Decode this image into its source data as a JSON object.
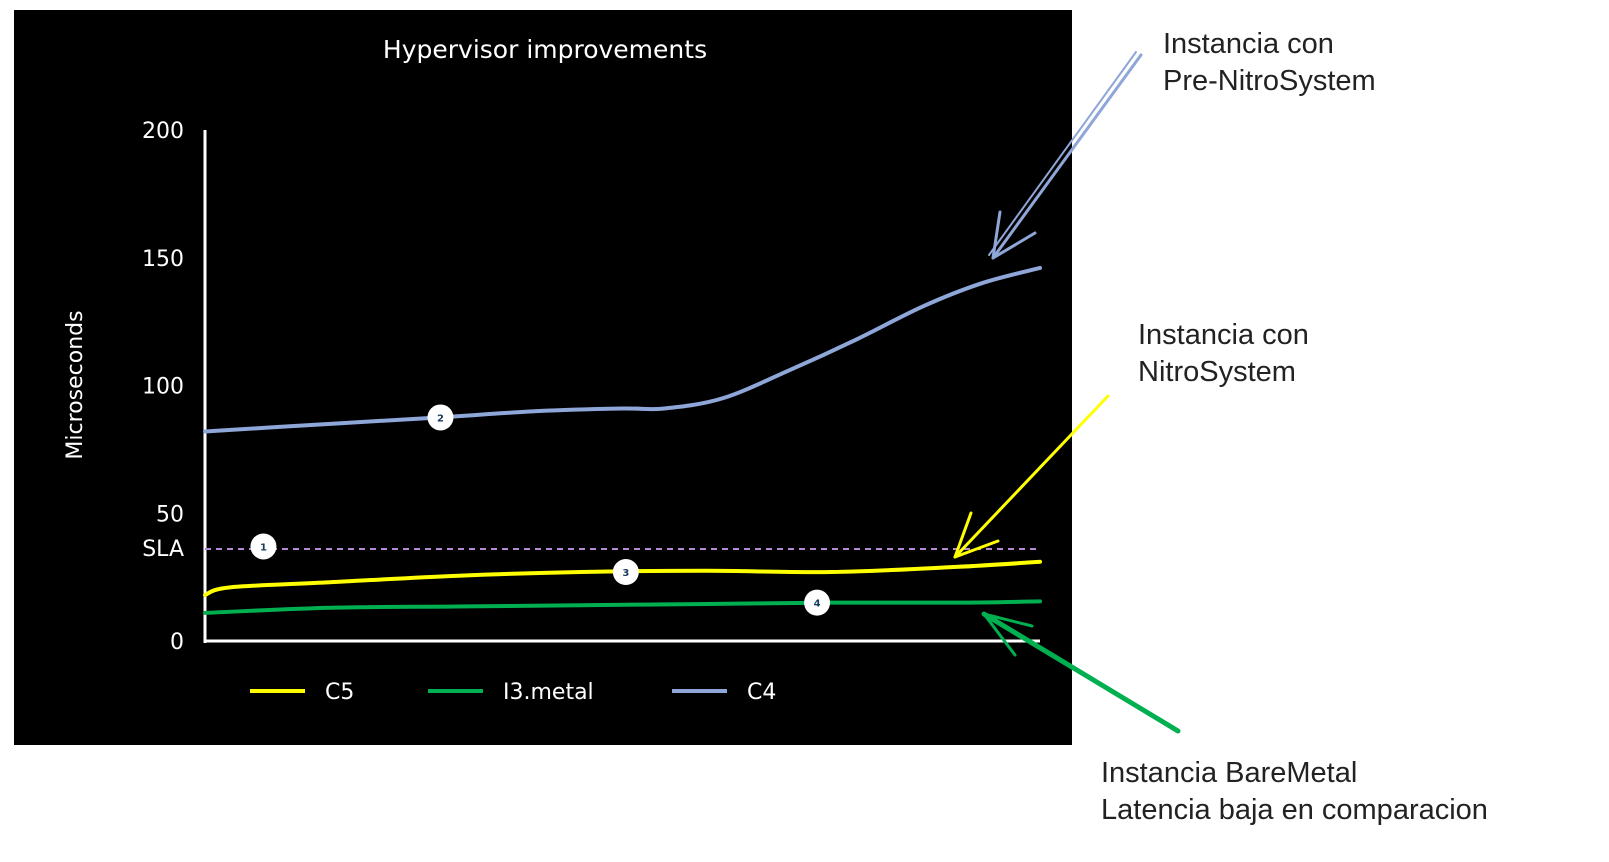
{
  "chart_data": {
    "type": "line",
    "title": "Hypervisor improvements",
    "xlabel": "",
    "ylabel": "Microseconds",
    "ylim": [
      0,
      200
    ],
    "yticks": [
      0,
      50,
      100,
      150,
      200
    ],
    "reference_line": {
      "label": "SLA",
      "value": 36,
      "style": "dashed",
      "color": "#b48ad6"
    },
    "legend_position": "bottom",
    "series": [
      {
        "name": "C5",
        "color": "#ffff00",
        "x": [
          0,
          0.03,
          0.15,
          0.3,
          0.45,
          0.6,
          0.75,
          0.9,
          1.0
        ],
        "values": [
          18,
          21,
          23,
          25.5,
          27,
          27.5,
          27,
          29,
          31
        ]
      },
      {
        "name": "I3.metal",
        "color": "#00b050",
        "x": [
          0,
          0.15,
          0.3,
          0.45,
          0.6,
          0.75,
          0.9,
          1.0
        ],
        "values": [
          11,
          13,
          13.5,
          14,
          14.5,
          15,
          15,
          15.5
        ]
      },
      {
        "name": "C4",
        "color": "#8ea6d8",
        "x": [
          0,
          0.15,
          0.28,
          0.4,
          0.5,
          0.55,
          0.62,
          0.7,
          0.78,
          0.86,
          0.93,
          1.0
        ],
        "values": [
          82,
          85,
          87.5,
          90,
          91,
          91,
          95,
          106,
          118,
          131,
          140,
          146
        ]
      }
    ],
    "markers": [
      {
        "label": "1",
        "x": 0.07,
        "y": 37
      },
      {
        "label": "2",
        "x": 0.282,
        "y": 87.5
      },
      {
        "label": "3",
        "x": 0.504,
        "y": 27
      },
      {
        "label": "4",
        "x": 0.733,
        "y": 15
      }
    ]
  },
  "annotations": [
    {
      "lines": [
        "Instancia con",
        "Pre-NitroSystem"
      ],
      "arrow_color": "#8ea6d8"
    },
    {
      "lines": [
        "Instancia con",
        "NitroSystem"
      ],
      "arrow_color": "#ffff00"
    },
    {
      "lines": [
        "Instancia BareMetal",
        "Latencia baja en comparacion"
      ],
      "arrow_color": "#00b050"
    }
  ]
}
